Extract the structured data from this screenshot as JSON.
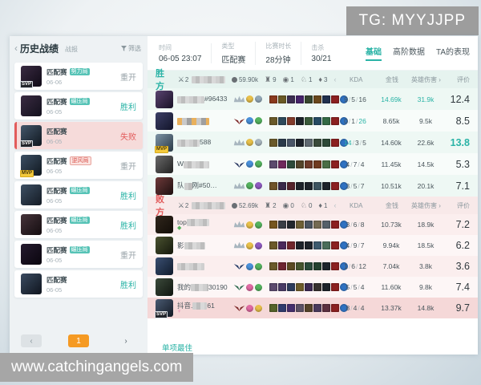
{
  "watermarks": {
    "top": "TG: MYYJJPP",
    "bottom": "www.catchingangels.com"
  },
  "accent": {
    "teal": "#2ab3a6",
    "red": "#e25b5b",
    "orange": "#f59a23"
  },
  "sidebar": {
    "back_icon": "‹",
    "title": "历史战绩",
    "subtitle": "战报",
    "filter_label": "筛选",
    "matches": [
      {
        "mode": "匹配赛",
        "tag": "努力局",
        "tag_type": "teal",
        "date": "06-06",
        "result": "重开",
        "result_type": "gray",
        "medal": "SVP",
        "selected": false,
        "avatar": [
          "#3a2b42",
          "#0f0a16"
        ]
      },
      {
        "mode": "匹配赛",
        "tag": "碾压局",
        "tag_type": "teal",
        "date": "06-05",
        "result": "胜利",
        "result_type": "teal",
        "medal": "",
        "selected": false,
        "avatar": [
          "#3a2b42",
          "#12101c"
        ]
      },
      {
        "mode": "匹配赛",
        "tag": "",
        "tag_type": "",
        "date": "06-05",
        "result": "失败",
        "result_type": "red",
        "medal": "SVP",
        "selected": true,
        "avatar": [
          "#44566a",
          "#101820"
        ]
      },
      {
        "mode": "匹配赛",
        "tag": "逆风局",
        "tag_type": "red",
        "date": "06-05",
        "result": "重开",
        "result_type": "gray",
        "medal": "MVP",
        "selected": false,
        "avatar": [
          "#3d4f63",
          "#101820"
        ]
      },
      {
        "mode": "匹配赛",
        "tag": "碾压局",
        "tag_type": "teal",
        "date": "06-05",
        "result": "胜利",
        "result_type": "teal",
        "medal": "",
        "selected": false,
        "avatar": [
          "#3d4f63",
          "#141b24"
        ]
      },
      {
        "mode": "匹配赛",
        "tag": "碾压局",
        "tag_type": "teal",
        "date": "06-05",
        "result": "胜利",
        "result_type": "teal",
        "medal": "",
        "selected": false,
        "avatar": [
          "#46333a",
          "#140d10"
        ]
      },
      {
        "mode": "匹配赛",
        "tag": "碾压局",
        "tag_type": "teal",
        "date": "06-05",
        "result": "重开",
        "result_type": "gray",
        "medal": "",
        "selected": false,
        "avatar": [
          "#241a2e",
          "#0a060e"
        ]
      },
      {
        "mode": "匹配赛",
        "tag": "",
        "tag_type": "",
        "date": "06-05",
        "result": "胜利",
        "result_type": "teal",
        "medal": "",
        "selected": false,
        "avatar": [
          "#3a4a60",
          "#0f151e"
        ]
      }
    ],
    "pagination": {
      "prev": "‹",
      "page": "1",
      "next": "›"
    }
  },
  "summary": {
    "fields": [
      {
        "label": "时间",
        "value": "06-05 23:07"
      },
      {
        "label": "类型",
        "value": "匹配赛"
      },
      {
        "label": "比赛时长",
        "value": "28分钟"
      },
      {
        "label": "击杀",
        "value": "30/21"
      }
    ],
    "tabs": [
      {
        "label": "基础",
        "active": true
      },
      {
        "label": "高阶数据",
        "active": false
      },
      {
        "label": "TA的表现",
        "active": false
      }
    ]
  },
  "columns": {
    "prev_arrow": "‹",
    "kda": "KDA",
    "gold": "金钱",
    "damage": "英雄伤害",
    "next_arrow": "›",
    "score": "评价"
  },
  "teams": [
    {
      "name": "胜方",
      "type": "win",
      "sword_icon": "⚔",
      "sword_count": "2",
      "stats": {
        "gold": "59.90k",
        "tower": "9",
        "baron": "1",
        "herald": "1",
        "dragon": "3"
      },
      "players": [
        {
          "prefix": "",
          "blur": 34,
          "blur_style": "",
          "suffix": "#96433",
          "medal": "",
          "sub": "",
          "sub_color": "",
          "rank": "crown",
          "rank_color": "#a8b6bf",
          "badges": [
            "#e8c04a",
            "#93a9b8"
          ],
          "avatar": [
            "#5a4470",
            "#171126"
          ],
          "items": [
            "#8a3a1e",
            "#6b5a26",
            "#3c2f52",
            "#46246a",
            "#37462f",
            "#6b481d",
            "#20304e",
            "#8c2020",
            "#2f72c2"
          ],
          "kda": [
            "9",
            "5",
            "16"
          ],
          "kda_hl": [],
          "gold": "14.69k",
          "gold_hl": true,
          "dmg": "31.9k",
          "dmg_hl": true,
          "score": "12.4",
          "score_hl": false,
          "self": false
        },
        {
          "prefix": "",
          "blur": 40,
          "blur_style": "o",
          "suffix": "",
          "medal": "",
          "sub": "",
          "sub_color": "",
          "rank": "wings",
          "rank_color": "#7e2a2a",
          "badges": [
            "#4a90d9",
            "#55b35f"
          ],
          "avatar": [
            "#3c3f66",
            "#12142a"
          ],
          "items": [
            "#6b5a2a",
            "#2f4a5c",
            "#833c2c",
            "#1d232a",
            "#3a5a3a",
            "#274b63",
            "#356b46",
            "#8c2020",
            "#2f72c2"
          ],
          "kda": [
            "0",
            "1",
            "26"
          ],
          "kda_hl": [
            2
          ],
          "gold": "8.65k",
          "gold_hl": false,
          "dmg": "9.5k",
          "dmg_hl": false,
          "score": "8.5",
          "score_hl": false,
          "self": false
        },
        {
          "prefix": "",
          "blur": 28,
          "blur_style": "",
          "suffix": "588",
          "medal": "MVP",
          "sub": "",
          "sub_color": "",
          "rank": "crown",
          "rank_color": "#a8b6bf",
          "badges": [
            "#e8c04a",
            "#a8b6bf"
          ],
          "avatar": [
            "#7d93a5",
            "#2a3a46"
          ],
          "items": [
            "#6b5a2a",
            "#2b3a4a",
            "#4a5668",
            "#1d232a",
            "#606a72",
            "#3a4a3a",
            "#2e4a38",
            "#8c2020",
            "#2f72c2"
          ],
          "kda": [
            "14",
            "3",
            "5"
          ],
          "kda_hl": [
            0
          ],
          "gold": "14.60k",
          "gold_hl": false,
          "dmg": "22.6k",
          "dmg_hl": false,
          "score": "13.8",
          "score_hl": true,
          "self": false
        },
        {
          "prefix": "W",
          "blur": 32,
          "blur_style": "",
          "suffix": "",
          "medal": "",
          "sub": "",
          "sub_color": "",
          "rank": "wings",
          "rank_color": "#2c3a63",
          "badges": [
            "#4a90d9",
            "#55b35f"
          ],
          "avatar": [
            "#6a6a6a",
            "#222222"
          ],
          "items": [
            "#5c4a6e",
            "#71295c",
            "#2e4a3a",
            "#55442a",
            "#6e3a2a",
            "#703b20",
            "#4a6e46",
            "#8c2020",
            "#2f72c2"
          ],
          "kda": [
            "4",
            "7",
            "4"
          ],
          "kda_hl": [],
          "gold": "11.45k",
          "gold_hl": false,
          "dmg": "14.5k",
          "dmg_hl": false,
          "score": "5.3",
          "score_hl": false,
          "self": false
        },
        {
          "prefix": "队",
          "blur": 10,
          "blur_style": "",
          "suffix": "刚#50…",
          "medal": "",
          "sub": "",
          "sub_color": "",
          "rank": "crown",
          "rank_color": "#a8b6bf",
          "badges": [
            "#55b35f",
            "#8e5bc0"
          ],
          "avatar": [
            "#6e3a3a",
            "#1d0f0f"
          ],
          "items": [
            "#70552a",
            "#3a2a4a",
            "#55232b",
            "#1d232a",
            "#1d232a",
            "#3d5560",
            "#1d232a",
            "#8c2020",
            "#2f72c2"
          ],
          "kda": [
            "3",
            "5",
            "7"
          ],
          "kda_hl": [],
          "gold": "10.51k",
          "gold_hl": false,
          "dmg": "20.1k",
          "dmg_hl": false,
          "score": "7.1",
          "score_hl": false,
          "self": false
        }
      ]
    },
    {
      "name": "败方",
      "type": "lose",
      "sword_icon": "⚔",
      "sword_count": "2",
      "stats": {
        "gold": "52.69k",
        "tower": "2",
        "baron": "0",
        "herald": "0",
        "dragon": "1"
      },
      "players": [
        {
          "prefix": "top",
          "blur": 28,
          "blur_style": "",
          "suffix": "",
          "medal": "",
          "sub": "◆",
          "sub_color": "#55b35f",
          "rank": "crown",
          "rank_color": "#a8b6bf",
          "badges": [
            "#e8c04a",
            "#55b35f"
          ],
          "avatar": [
            "#30261c",
            "#120d08"
          ],
          "items": [
            "#76571f",
            "#3a3f46",
            "#23282e",
            "#6e6036",
            "#4a5560",
            "#746a52",
            "#55606a",
            "#8c2020",
            "#2f72c2"
          ],
          "kda": [
            "3",
            "6",
            "8"
          ],
          "kda_hl": [],
          "gold": "10.73k",
          "gold_hl": false,
          "dmg": "18.9k",
          "dmg_hl": false,
          "score": "7.2",
          "score_hl": false,
          "self": false
        },
        {
          "prefix": "影",
          "blur": 26,
          "blur_style": "",
          "suffix": "",
          "medal": "",
          "sub": "",
          "sub_color": "",
          "rank": "crown",
          "rank_color": "#a8b6bf",
          "badges": [
            "#e8c04a",
            "#8e5bc0"
          ],
          "avatar": [
            "#4a5230",
            "#15180c"
          ],
          "items": [
            "#6b5a2a",
            "#4a2a5c",
            "#70262c",
            "#1d232a",
            "#1d232a",
            "#3c5a6e",
            "#4a6e5a",
            "#8c2020",
            "#2f72c2"
          ],
          "kda": [
            "4",
            "9",
            "7"
          ],
          "kda_hl": [],
          "gold": "9.94k",
          "gold_hl": false,
          "dmg": "18.5k",
          "dmg_hl": false,
          "score": "6.2",
          "score_hl": false,
          "self": false
        },
        {
          "prefix": "",
          "blur": 34,
          "blur_style": "",
          "suffix": "",
          "medal": "",
          "sub": "",
          "sub_color": "",
          "rank": "wings",
          "rank_color": "#243a66",
          "badges": [
            "#4a90d9",
            "#55b35f"
          ],
          "avatar": [
            "#3a4f72",
            "#101b2c"
          ],
          "items": [
            "#6b5a2a",
            "#6e2430",
            "#5c4a22",
            "#46552e",
            "#2a4a3a",
            "#24402e",
            "#1d232a",
            "#8c2020",
            "#2f72c2"
          ],
          "kda": [
            "1",
            "6",
            "12"
          ],
          "kda_hl": [],
          "gold": "7.04k",
          "gold_hl": false,
          "dmg": "3.8k",
          "dmg_hl": false,
          "score": "3.6",
          "score_hl": false,
          "self": false
        },
        {
          "prefix": "我的",
          "blur": 22,
          "blur_style": "",
          "suffix": "30190",
          "medal": "",
          "sub": "",
          "sub_color": "",
          "rank": "wings",
          "rank_color": "#2f6b4f",
          "badges": [
            "#e06aa3",
            "#55b35f"
          ],
          "avatar": [
            "#3c4a3a",
            "#101510"
          ],
          "items": [
            "#5c4a6e",
            "#4a3c66",
            "#2e3c5c",
            "#6e5c2a",
            "#3c2a52",
            "#36302e",
            "#1d232a",
            "#8c2020",
            "#2f72c2"
          ],
          "kda": [
            "5",
            "5",
            "4"
          ],
          "kda_hl": [],
          "gold": "11.60k",
          "gold_hl": false,
          "dmg": "9.8k",
          "dmg_hl": false,
          "score": "7.4",
          "score_hl": false,
          "self": false
        },
        {
          "prefix": "抖音.",
          "blur": 18,
          "blur_style": "",
          "suffix": "61",
          "medal": "SVP",
          "sub": "♀",
          "sub_color": "#e06aa3",
          "rank": "wings",
          "rank_color": "#7e2a2a",
          "badges": [
            "#e06aa3",
            "#e8c04a"
          ],
          "avatar": [
            "#4a5a72",
            "#131a24"
          ],
          "items": [
            "#55632a",
            "#303c6e",
            "#46306e",
            "#5c5266",
            "#55432a",
            "#4a3a5c",
            "#5c3040",
            "#8c2020",
            "#2f72c2"
          ],
          "kda": [
            "8",
            "4",
            "4"
          ],
          "kda_hl": [],
          "gold": "13.37k",
          "gold_hl": false,
          "dmg": "14.8k",
          "dmg_hl": false,
          "score": "9.7",
          "score_hl": false,
          "self": true
        }
      ]
    }
  ],
  "footer_tab": "单项最佳"
}
